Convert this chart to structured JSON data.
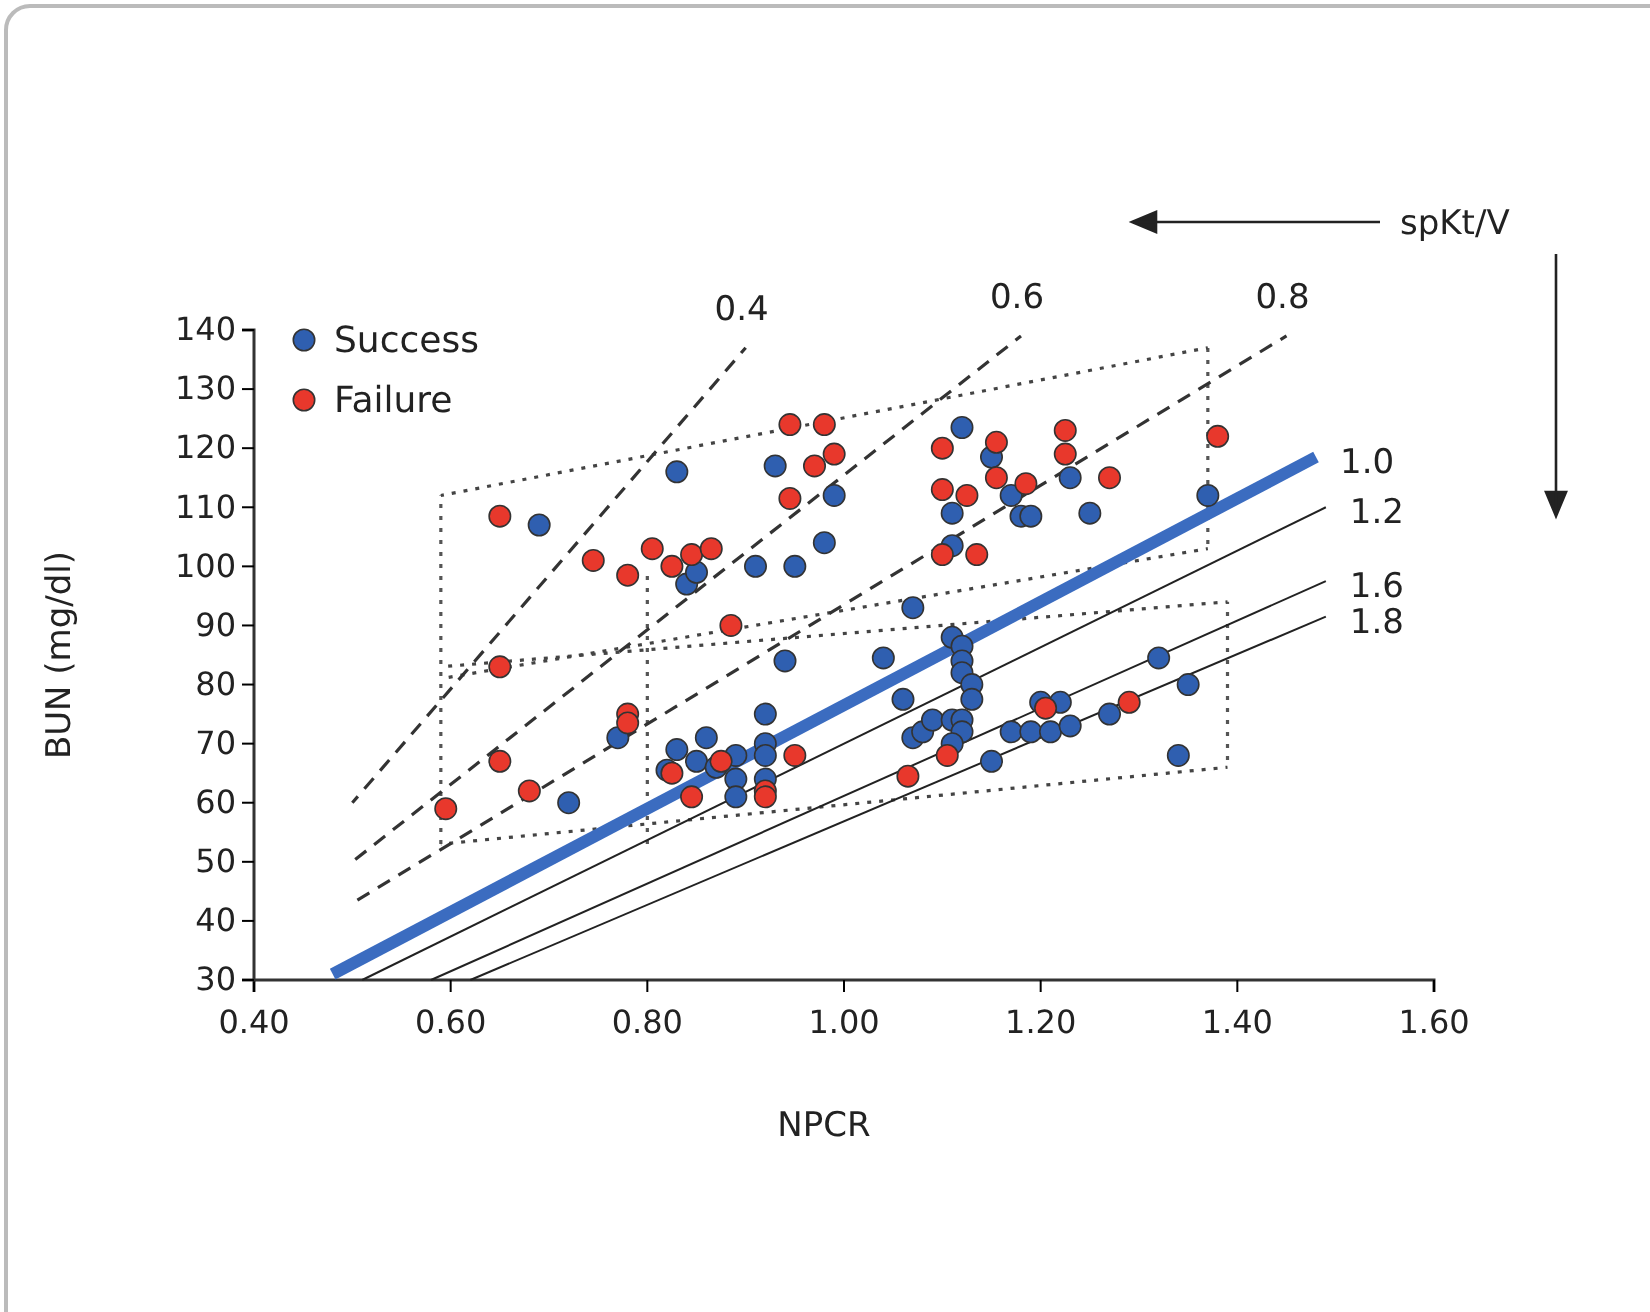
{
  "chart_data": {
    "type": "scatter",
    "xlabel": "NPCR",
    "ylabel": "BUN (mg/dl)",
    "xlim": [
      0.4,
      1.6
    ],
    "ylim": [
      30,
      140
    ],
    "xticks": [
      {
        "value": 0.4,
        "label": "0.40"
      },
      {
        "value": 0.6,
        "label": "0.60"
      },
      {
        "value": 0.8,
        "label": "0.80"
      },
      {
        "value": 1.0,
        "label": "1.00"
      },
      {
        "value": 1.2,
        "label": "1.20"
      },
      {
        "value": 1.4,
        "label": "1.40"
      },
      {
        "value": 1.6,
        "label": "1.60"
      }
    ],
    "yticks": [
      30,
      40,
      50,
      60,
      70,
      80,
      90,
      100,
      110,
      120,
      130,
      140
    ],
    "grid": false,
    "legend": "top left",
    "marker": "circle",
    "annotations": [
      "spKt/V"
    ],
    "series": [
      {
        "type": "line",
        "line_style": "dotted",
        "marker": "none",
        "color": "#444444",
        "x": [
          0.59,
          1.37
        ],
        "values": [
          112,
          137
        ]
      },
      {
        "type": "line",
        "line_style": "dotted",
        "marker": "none",
        "color": "#444444",
        "x": [
          0.59,
          1.37
        ],
        "values": [
          81,
          103
        ]
      },
      {
        "type": "line",
        "line_style": "dotted",
        "marker": "none",
        "color": "#444444",
        "x": [
          0.59,
          1.39
        ],
        "values": [
          83,
          94
        ]
      },
      {
        "type": "line",
        "line_style": "dotted",
        "marker": "none",
        "color": "#444444",
        "x": [
          0.59,
          1.39
        ],
        "values": [
          53,
          66
        ]
      },
      {
        "type": "line",
        "line_style": "dashed",
        "marker": "none",
        "name": "0.4",
        "color": "#333333",
        "x": [
          0.5,
          0.9
        ],
        "values": [
          60,
          137
        ]
      },
      {
        "type": "line",
        "line_style": "dashed",
        "marker": "none",
        "name": "0.6",
        "color": "#333333",
        "x": [
          0.5,
          1.18
        ],
        "values": [
          50,
          139
        ]
      },
      {
        "type": "line",
        "line_style": "dashed",
        "marker": "none",
        "name": "0.8",
        "color": "#333333",
        "x": [
          0.5,
          1.45
        ],
        "values": [
          43,
          139
        ]
      },
      {
        "type": "line",
        "line_style": "solid",
        "marker": "none",
        "name": "1.0",
        "color": "#3b6cc0",
        "x": [
          0.48,
          1.48
        ],
        "values": [
          31,
          118.5
        ]
      },
      {
        "type": "line",
        "line_style": "solid",
        "marker": "none",
        "name": "1.2",
        "color": "#222222",
        "x": [
          0.51,
          1.49
        ],
        "values": [
          30,
          110
        ]
      },
      {
        "type": "line",
        "line_style": "solid",
        "marker": "none",
        "name": "1.6",
        "color": "#222222",
        "x": [
          0.58,
          1.49
        ],
        "values": [
          30,
          97.5
        ]
      },
      {
        "type": "line",
        "line_style": "solid",
        "marker": "none",
        "name": "1.8",
        "color": "#222222",
        "x": [
          0.62,
          1.49
        ],
        "values": [
          30,
          91.5
        ]
      },
      {
        "name": "Success",
        "color": "#2f5fb0",
        "x": [
          0.69,
          0.83,
          0.84,
          0.85,
          0.91,
          0.93,
          0.95,
          0.98,
          0.99,
          0.94,
          0.72,
          0.77,
          0.83,
          0.82,
          0.85,
          0.86,
          0.87,
          0.89,
          0.89,
          0.89,
          0.92,
          0.92,
          0.92,
          0.92,
          1.12,
          1.15,
          1.23,
          1.11,
          1.17,
          1.18,
          1.19,
          1.25,
          1.11,
          1.37,
          1.07,
          1.04,
          1.11,
          1.12,
          1.12,
          1.12,
          1.13,
          1.13,
          1.06,
          1.07,
          1.08,
          1.09,
          1.11,
          1.12,
          1.12,
          1.11,
          1.17,
          1.19,
          1.21,
          1.2,
          1.22,
          1.23,
          1.27,
          1.32,
          1.35,
          1.34,
          1.15
        ],
        "values": [
          107,
          116,
          97,
          99,
          100,
          117,
          100,
          104,
          112,
          84,
          60,
          71,
          69,
          65.5,
          67,
          71,
          66,
          64,
          61,
          68,
          75,
          70,
          68,
          64,
          123.5,
          118.5,
          115,
          109,
          112,
          108.5,
          108.5,
          109,
          103.5,
          112,
          93,
          84.5,
          88,
          86.5,
          84,
          82,
          80,
          77.5,
          77.5,
          71,
          72,
          74,
          74,
          74,
          72,
          70,
          72,
          72,
          72,
          77,
          77,
          73,
          75,
          84.5,
          80,
          68,
          67
        ]
      },
      {
        "name": "Failure",
        "color": "#e8382c",
        "x": [
          0.945,
          0.98,
          0.99,
          0.97,
          0.945,
          0.65,
          0.745,
          0.78,
          0.805,
          0.825,
          0.845,
          0.865,
          0.885,
          0.65,
          0.78,
          0.78,
          0.65,
          0.68,
          0.595,
          0.825,
          0.845,
          0.875,
          0.95,
          0.92,
          0.92,
          1.1,
          1.155,
          1.155,
          1.225,
          1.225,
          1.185,
          1.27,
          1.38,
          1.1,
          1.125,
          1.1,
          1.135,
          1.205,
          1.29,
          1.105,
          1.065
        ],
        "values": [
          124,
          124,
          119,
          117,
          111.5,
          108.5,
          101,
          98.5,
          103,
          100,
          102,
          103,
          90,
          83,
          75,
          73.5,
          67,
          62,
          59,
          65,
          61,
          67,
          68,
          62,
          61,
          120,
          121,
          115,
          123,
          119,
          114,
          115,
          122,
          113,
          112,
          102,
          102,
          76,
          77,
          68,
          64.5
        ]
      }
    ]
  }
}
